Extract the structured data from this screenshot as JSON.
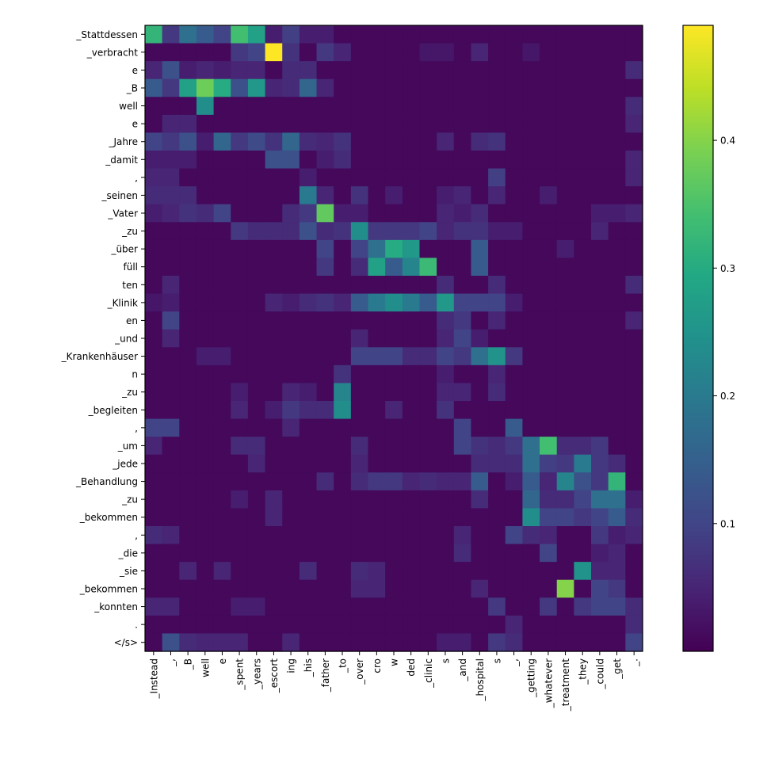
{
  "chart_data": {
    "type": "heatmap",
    "title": "",
    "xlabel": "",
    "ylabel": "",
    "x_tokens": [
      "_Instead",
      "_,",
      "_B",
      "well",
      "e",
      "_spent",
      "_years",
      "_escort",
      "ing",
      "_his",
      "_father",
      "_to",
      "_over",
      "cro",
      "w",
      "ded",
      "_clinic",
      "s",
      "_and",
      "_hospital",
      "s",
      "_,",
      "_getting",
      "_whatever",
      "_treatment",
      "_they",
      "_could",
      "_get",
      "_."
    ],
    "y_tokens": [
      "_Stattdessen",
      "_verbracht",
      "e",
      "_B",
      "well",
      "e",
      "_Jahre",
      "_damit",
      ",",
      "_seinen",
      "_Vater",
      "_zu",
      "_über",
      "füll",
      "ten",
      "_Klinik",
      "en",
      "_und",
      "_Krankenhäuser",
      "n",
      "_zu",
      "_begleiten",
      ",",
      "_um",
      "_jede",
      "_Behandlung",
      "_zu",
      "_bekommen",
      ",",
      "_die",
      "_sie",
      "_bekommen",
      "_konnten",
      ".",
      "</s>"
    ],
    "colorbar": {
      "ticks": [
        0.1,
        0.2,
        0.3,
        0.4
      ],
      "vmin": 0.0,
      "vmax": 0.49,
      "colormap": "viridis"
    },
    "base_value": 0.01,
    "cells": [
      [
        0,
        0,
        0.32
      ],
      [
        0,
        1,
        0.08
      ],
      [
        0,
        2,
        0.18
      ],
      [
        0,
        3,
        0.14
      ],
      [
        0,
        4,
        0.1
      ],
      [
        0,
        5,
        0.34
      ],
      [
        0,
        6,
        0.28
      ],
      [
        0,
        7,
        0.04
      ],
      [
        0,
        8,
        0.09
      ],
      [
        0,
        9,
        0.04
      ],
      [
        0,
        10,
        0.04
      ],
      [
        1,
        5,
        0.08
      ],
      [
        1,
        6,
        0.1
      ],
      [
        1,
        7,
        0.49
      ],
      [
        1,
        8,
        0.07
      ],
      [
        1,
        10,
        0.08
      ],
      [
        1,
        11,
        0.05
      ],
      [
        1,
        16,
        0.03
      ],
      [
        1,
        17,
        0.03
      ],
      [
        1,
        19,
        0.05
      ],
      [
        1,
        22,
        0.03
      ],
      [
        2,
        0,
        0.05
      ],
      [
        2,
        1,
        0.12
      ],
      [
        2,
        2,
        0.04
      ],
      [
        2,
        3,
        0.05
      ],
      [
        2,
        4,
        0.04
      ],
      [
        2,
        5,
        0.05
      ],
      [
        2,
        6,
        0.05
      ],
      [
        2,
        8,
        0.06
      ],
      [
        2,
        9,
        0.06
      ],
      [
        2,
        28,
        0.06
      ],
      [
        3,
        0,
        0.14
      ],
      [
        3,
        1,
        0.08
      ],
      [
        3,
        2,
        0.28
      ],
      [
        3,
        3,
        0.38
      ],
      [
        3,
        4,
        0.3
      ],
      [
        3,
        5,
        0.12
      ],
      [
        3,
        6,
        0.26
      ],
      [
        3,
        7,
        0.05
      ],
      [
        3,
        8,
        0.06
      ],
      [
        3,
        9,
        0.16
      ],
      [
        3,
        10,
        0.05
      ],
      [
        4,
        3,
        0.24
      ],
      [
        4,
        28,
        0.06
      ],
      [
        5,
        1,
        0.05
      ],
      [
        5,
        2,
        0.05
      ],
      [
        5,
        28,
        0.05
      ],
      [
        6,
        0,
        0.1
      ],
      [
        6,
        1,
        0.08
      ],
      [
        6,
        2,
        0.12
      ],
      [
        6,
        3,
        0.04
      ],
      [
        6,
        4,
        0.16
      ],
      [
        6,
        5,
        0.08
      ],
      [
        6,
        6,
        0.11
      ],
      [
        6,
        7,
        0.07
      ],
      [
        6,
        8,
        0.16
      ],
      [
        6,
        9,
        0.06
      ],
      [
        6,
        10,
        0.05
      ],
      [
        6,
        11,
        0.07
      ],
      [
        6,
        17,
        0.05
      ],
      [
        6,
        19,
        0.06
      ],
      [
        6,
        20,
        0.07
      ],
      [
        7,
        0,
        0.04
      ],
      [
        7,
        1,
        0.04
      ],
      [
        7,
        2,
        0.04
      ],
      [
        7,
        7,
        0.12
      ],
      [
        7,
        8,
        0.12
      ],
      [
        7,
        10,
        0.04
      ],
      [
        7,
        11,
        0.06
      ],
      [
        7,
        28,
        0.05
      ],
      [
        8,
        0,
        0.05
      ],
      [
        8,
        1,
        0.05
      ],
      [
        8,
        9,
        0.04
      ],
      [
        8,
        20,
        0.09
      ],
      [
        8,
        28,
        0.05
      ],
      [
        9,
        0,
        0.06
      ],
      [
        9,
        1,
        0.06
      ],
      [
        9,
        2,
        0.06
      ],
      [
        9,
        9,
        0.2
      ],
      [
        9,
        10,
        0.05
      ],
      [
        9,
        12,
        0.07
      ],
      [
        9,
        14,
        0.04
      ],
      [
        9,
        17,
        0.04
      ],
      [
        9,
        18,
        0.05
      ],
      [
        9,
        20,
        0.05
      ],
      [
        9,
        23,
        0.04
      ],
      [
        10,
        0,
        0.04
      ],
      [
        10,
        1,
        0.05
      ],
      [
        10,
        2,
        0.07
      ],
      [
        10,
        3,
        0.06
      ],
      [
        10,
        4,
        0.1
      ],
      [
        10,
        8,
        0.06
      ],
      [
        10,
        9,
        0.08
      ],
      [
        10,
        10,
        0.37
      ],
      [
        10,
        11,
        0.04
      ],
      [
        10,
        12,
        0.04
      ],
      [
        10,
        17,
        0.05
      ],
      [
        10,
        18,
        0.04
      ],
      [
        10,
        19,
        0.06
      ],
      [
        10,
        26,
        0.04
      ],
      [
        10,
        27,
        0.04
      ],
      [
        10,
        28,
        0.05
      ],
      [
        11,
        5,
        0.08
      ],
      [
        11,
        6,
        0.06
      ],
      [
        11,
        7,
        0.06
      ],
      [
        11,
        8,
        0.06
      ],
      [
        11,
        9,
        0.12
      ],
      [
        11,
        10,
        0.06
      ],
      [
        11,
        11,
        0.07
      ],
      [
        11,
        12,
        0.24
      ],
      [
        11,
        13,
        0.08
      ],
      [
        11,
        14,
        0.08
      ],
      [
        11,
        15,
        0.08
      ],
      [
        11,
        16,
        0.1
      ],
      [
        11,
        17,
        0.05
      ],
      [
        11,
        18,
        0.07
      ],
      [
        11,
        19,
        0.07
      ],
      [
        11,
        20,
        0.04
      ],
      [
        11,
        21,
        0.04
      ],
      [
        11,
        26,
        0.05
      ],
      [
        12,
        10,
        0.1
      ],
      [
        12,
        12,
        0.1
      ],
      [
        12,
        13,
        0.18
      ],
      [
        12,
        14,
        0.3
      ],
      [
        12,
        15,
        0.26
      ],
      [
        12,
        19,
        0.14
      ],
      [
        12,
        24,
        0.04
      ],
      [
        13,
        10,
        0.08
      ],
      [
        13,
        12,
        0.06
      ],
      [
        13,
        13,
        0.28
      ],
      [
        13,
        14,
        0.14
      ],
      [
        13,
        15,
        0.22
      ],
      [
        13,
        16,
        0.33
      ],
      [
        13,
        19,
        0.14
      ],
      [
        14,
        1,
        0.05
      ],
      [
        14,
        17,
        0.06
      ],
      [
        14,
        20,
        0.06
      ],
      [
        14,
        28,
        0.06
      ],
      [
        15,
        0,
        0.03
      ],
      [
        15,
        1,
        0.04
      ],
      [
        15,
        7,
        0.05
      ],
      [
        15,
        8,
        0.04
      ],
      [
        15,
        9,
        0.06
      ],
      [
        15,
        10,
        0.07
      ],
      [
        15,
        11,
        0.05
      ],
      [
        15,
        12,
        0.14
      ],
      [
        15,
        13,
        0.2
      ],
      [
        15,
        14,
        0.24
      ],
      [
        15,
        15,
        0.2
      ],
      [
        15,
        16,
        0.14
      ],
      [
        15,
        17,
        0.26
      ],
      [
        15,
        18,
        0.1
      ],
      [
        15,
        19,
        0.1
      ],
      [
        15,
        20,
        0.1
      ],
      [
        15,
        21,
        0.04
      ],
      [
        16,
        1,
        0.1
      ],
      [
        16,
        17,
        0.06
      ],
      [
        16,
        18,
        0.08
      ],
      [
        16,
        20,
        0.05
      ],
      [
        16,
        28,
        0.05
      ],
      [
        17,
        1,
        0.05
      ],
      [
        17,
        12,
        0.05
      ],
      [
        17,
        17,
        0.05
      ],
      [
        17,
        18,
        0.1
      ],
      [
        17,
        19,
        0.04
      ],
      [
        18,
        3,
        0.04
      ],
      [
        18,
        4,
        0.04
      ],
      [
        18,
        12,
        0.1
      ],
      [
        18,
        13,
        0.1
      ],
      [
        18,
        14,
        0.1
      ],
      [
        18,
        15,
        0.06
      ],
      [
        18,
        16,
        0.06
      ],
      [
        18,
        17,
        0.1
      ],
      [
        18,
        18,
        0.08
      ],
      [
        18,
        19,
        0.18
      ],
      [
        18,
        20,
        0.25
      ],
      [
        18,
        21,
        0.08
      ],
      [
        19,
        11,
        0.07
      ],
      [
        19,
        17,
        0.04
      ],
      [
        19,
        20,
        0.05
      ],
      [
        20,
        5,
        0.04
      ],
      [
        20,
        8,
        0.05
      ],
      [
        20,
        9,
        0.04
      ],
      [
        20,
        11,
        0.22
      ],
      [
        20,
        17,
        0.05
      ],
      [
        20,
        18,
        0.05
      ],
      [
        20,
        20,
        0.06
      ],
      [
        21,
        5,
        0.05
      ],
      [
        21,
        7,
        0.04
      ],
      [
        21,
        8,
        0.08
      ],
      [
        21,
        9,
        0.06
      ],
      [
        21,
        10,
        0.06
      ],
      [
        21,
        11,
        0.24
      ],
      [
        21,
        14,
        0.05
      ],
      [
        21,
        17,
        0.07
      ],
      [
        22,
        0,
        0.1
      ],
      [
        22,
        1,
        0.1
      ],
      [
        22,
        8,
        0.05
      ],
      [
        22,
        18,
        0.1
      ],
      [
        22,
        21,
        0.14
      ],
      [
        23,
        0,
        0.05
      ],
      [
        23,
        5,
        0.06
      ],
      [
        23,
        6,
        0.06
      ],
      [
        23,
        12,
        0.06
      ],
      [
        23,
        18,
        0.1
      ],
      [
        23,
        19,
        0.07
      ],
      [
        23,
        20,
        0.06
      ],
      [
        23,
        21,
        0.08
      ],
      [
        23,
        22,
        0.18
      ],
      [
        23,
        23,
        0.34
      ],
      [
        23,
        24,
        0.06
      ],
      [
        23,
        25,
        0.06
      ],
      [
        23,
        26,
        0.08
      ],
      [
        24,
        6,
        0.05
      ],
      [
        24,
        12,
        0.05
      ],
      [
        24,
        19,
        0.06
      ],
      [
        24,
        20,
        0.06
      ],
      [
        24,
        21,
        0.06
      ],
      [
        24,
        22,
        0.18
      ],
      [
        24,
        23,
        0.09
      ],
      [
        24,
        24,
        0.08
      ],
      [
        24,
        25,
        0.2
      ],
      [
        24,
        26,
        0.08
      ],
      [
        24,
        27,
        0.06
      ],
      [
        25,
        10,
        0.06
      ],
      [
        25,
        12,
        0.06
      ],
      [
        25,
        13,
        0.08
      ],
      [
        25,
        14,
        0.08
      ],
      [
        25,
        15,
        0.05
      ],
      [
        25,
        16,
        0.06
      ],
      [
        25,
        17,
        0.05
      ],
      [
        25,
        18,
        0.05
      ],
      [
        25,
        19,
        0.14
      ],
      [
        25,
        21,
        0.04
      ],
      [
        25,
        22,
        0.14
      ],
      [
        25,
        23,
        0.05
      ],
      [
        25,
        24,
        0.22
      ],
      [
        25,
        25,
        0.12
      ],
      [
        25,
        26,
        0.08
      ],
      [
        25,
        27,
        0.32
      ],
      [
        26,
        5,
        0.04
      ],
      [
        26,
        7,
        0.05
      ],
      [
        26,
        19,
        0.06
      ],
      [
        26,
        22,
        0.16
      ],
      [
        26,
        23,
        0.06
      ],
      [
        26,
        24,
        0.06
      ],
      [
        26,
        25,
        0.1
      ],
      [
        26,
        26,
        0.18
      ],
      [
        26,
        27,
        0.18
      ],
      [
        26,
        28,
        0.04
      ],
      [
        27,
        7,
        0.05
      ],
      [
        27,
        22,
        0.24
      ],
      [
        27,
        23,
        0.1
      ],
      [
        27,
        24,
        0.1
      ],
      [
        27,
        25,
        0.08
      ],
      [
        27,
        26,
        0.1
      ],
      [
        27,
        27,
        0.14
      ],
      [
        27,
        28,
        0.06
      ],
      [
        28,
        0,
        0.06
      ],
      [
        28,
        1,
        0.05
      ],
      [
        28,
        18,
        0.05
      ],
      [
        28,
        21,
        0.1
      ],
      [
        28,
        22,
        0.06
      ],
      [
        28,
        23,
        0.05
      ],
      [
        28,
        26,
        0.08
      ],
      [
        28,
        27,
        0.04
      ],
      [
        28,
        28,
        0.05
      ],
      [
        29,
        18,
        0.06
      ],
      [
        29,
        23,
        0.1
      ],
      [
        29,
        26,
        0.04
      ],
      [
        29,
        27,
        0.05
      ],
      [
        30,
        2,
        0.05
      ],
      [
        30,
        4,
        0.05
      ],
      [
        30,
        9,
        0.06
      ],
      [
        30,
        12,
        0.06
      ],
      [
        30,
        13,
        0.05
      ],
      [
        30,
        25,
        0.25
      ],
      [
        30,
        26,
        0.05
      ],
      [
        30,
        27,
        0.05
      ],
      [
        31,
        12,
        0.05
      ],
      [
        31,
        13,
        0.05
      ],
      [
        31,
        19,
        0.05
      ],
      [
        31,
        24,
        0.4
      ],
      [
        31,
        26,
        0.1
      ],
      [
        31,
        27,
        0.08
      ],
      [
        32,
        0,
        0.05
      ],
      [
        32,
        1,
        0.05
      ],
      [
        32,
        5,
        0.04
      ],
      [
        32,
        6,
        0.04
      ],
      [
        32,
        20,
        0.08
      ],
      [
        32,
        23,
        0.08
      ],
      [
        32,
        25,
        0.08
      ],
      [
        32,
        26,
        0.1
      ],
      [
        32,
        27,
        0.1
      ],
      [
        32,
        28,
        0.06
      ],
      [
        33,
        21,
        0.05
      ],
      [
        33,
        28,
        0.06
      ],
      [
        34,
        1,
        0.12
      ],
      [
        34,
        2,
        0.06
      ],
      [
        34,
        3,
        0.05
      ],
      [
        34,
        4,
        0.05
      ],
      [
        34,
        5,
        0.05
      ],
      [
        34,
        8,
        0.05
      ],
      [
        34,
        17,
        0.04
      ],
      [
        34,
        18,
        0.04
      ],
      [
        34,
        20,
        0.08
      ],
      [
        34,
        21,
        0.06
      ],
      [
        34,
        28,
        0.1
      ]
    ]
  }
}
